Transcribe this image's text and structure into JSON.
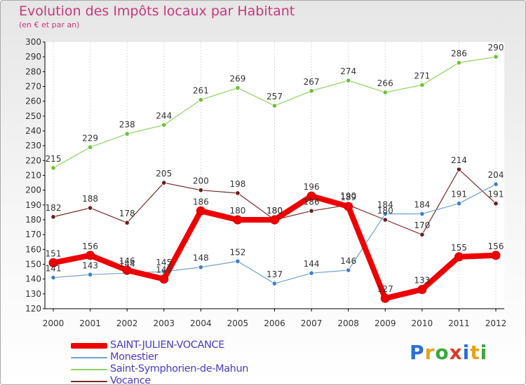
{
  "title": "Evolution des Impôts locaux par Habitant",
  "subtitle": "(en € et par an)",
  "logo": {
    "text": "Proxiti",
    "letter_colors": [
      "#2b6fd6",
      "#e8a317",
      "#3aa83a",
      "#d93a2b",
      "#2b6fd6",
      "#e8a317",
      "#3aa83a"
    ]
  },
  "chart_data": {
    "type": "line",
    "title": "Evolution des Impôts locaux par Habitant",
    "subtitle": "(en € et par an)",
    "xlabel": "",
    "ylabel": "",
    "ylim": [
      120,
      300
    ],
    "ytick_step": 10,
    "grid": "vertical",
    "legend_position": "bottom-left",
    "categories": [
      "2000",
      "2001",
      "2002",
      "2003",
      "2004",
      "2005",
      "2006",
      "2007",
      "2008",
      "2009",
      "2010",
      "2011",
      "2012"
    ],
    "series": [
      {
        "name": "Saint-Symphorien-de-Mahun",
        "color": "#8dd35f",
        "point_color": "#6fbf3a",
        "width": 1.2,
        "values": [
          215,
          229,
          238,
          244,
          261,
          269,
          257,
          267,
          274,
          266,
          271,
          286,
          290
        ],
        "labels": [
          "215",
          "229",
          "238",
          "244",
          "261",
          "269",
          "257",
          "267",
          "274",
          "266",
          "271",
          "286",
          "290"
        ]
      },
      {
        "name": "Vocance",
        "color": "#7a2a2a",
        "point_color": "#6b1e1e",
        "width": 1.2,
        "values": [
          182,
          188,
          178,
          205,
          200,
          198,
          180,
          186,
          190,
          180,
          170,
          214,
          191
        ],
        "labels": [
          "182",
          "188",
          "178",
          "205",
          "200",
          "198",
          "180",
          "186",
          "190",
          "180",
          "170",
          "214",
          "191"
        ]
      },
      {
        "name": "Monestier",
        "color": "#6fa0cf",
        "point_color": "#3d82c4",
        "width": 1.2,
        "values": [
          141,
          143,
          144,
          145,
          148,
          152,
          137,
          144,
          146,
          184,
          184,
          191,
          204
        ],
        "labels": [
          "141",
          "143",
          "144",
          "145",
          "148",
          "152",
          "137",
          "144",
          "146",
          "184",
          "184",
          "191",
          "204"
        ]
      },
      {
        "name": "SAINT-JULIEN-VOCANCE",
        "color": "#ee0000",
        "point_color": "#ee0000",
        "width": 8,
        "values": [
          151,
          156,
          146,
          140,
          186,
          180,
          180,
          196,
          189,
          127,
          133,
          155,
          156
        ],
        "labels": [
          "151",
          "156",
          "146",
          "140",
          "186",
          "180",
          "180",
          "196",
          "189",
          "127",
          "133",
          "155",
          "156"
        ]
      }
    ],
    "legend": [
      {
        "name": "SAINT-JULIEN-VOCANCE",
        "color": "#ee0000",
        "thickness": 8
      },
      {
        "name": "Monestier",
        "color": "#6fa0cf",
        "thickness": 2
      },
      {
        "name": "Saint-Symphorien-de-Mahun",
        "color": "#8dd35f",
        "thickness": 2
      },
      {
        "name": "Vocance",
        "color": "#7a2a2a",
        "thickness": 2
      }
    ]
  }
}
